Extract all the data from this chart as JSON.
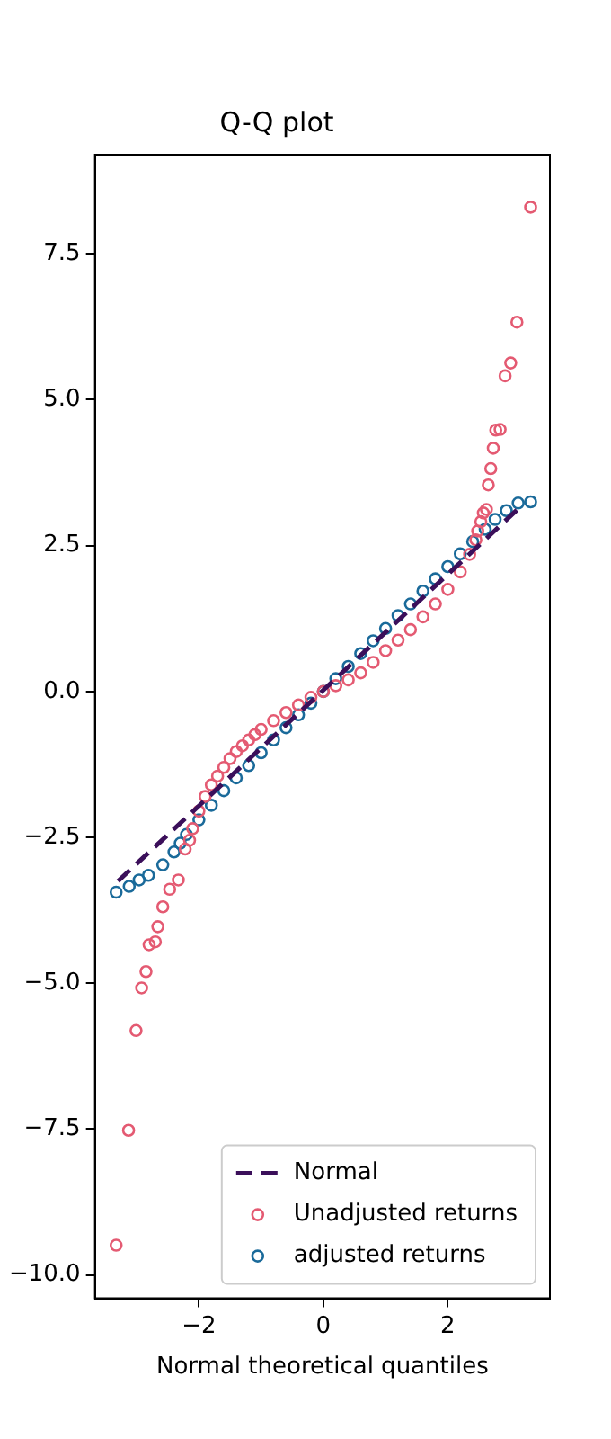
{
  "chart_data": {
    "type": "scatter",
    "title": "Q-Q plot",
    "xlabel": "Normal theoretical quantiles",
    "xlim": [
      -3.67,
      3.64
    ],
    "ylim": [
      -10.4,
      9.2
    ],
    "xticks": [
      {
        "value": -2,
        "label": "−2"
      },
      0,
      2
    ],
    "yticks": [
      {
        "value": -10,
        "label": "−10.0"
      },
      {
        "value": -7.5,
        "label": "−7.5"
      },
      {
        "value": -5,
        "label": "−5.0"
      },
      {
        "value": -2.5,
        "label": "−2.5"
      },
      {
        "value": 0,
        "label": "0.0"
      },
      {
        "value": 2.5,
        "label": "2.5"
      },
      {
        "value": 5,
        "label": "5.0"
      },
      {
        "value": 7.5,
        "label": "7.5"
      }
    ],
    "grid": false,
    "legend": "bottom right",
    "marker": "circle",
    "series": [
      {
        "name": "Normal",
        "type": "line",
        "color": "#3b0f5a",
        "line_style": "dashed",
        "marker": "none",
        "x": [
          -3.3,
          3.2
        ],
        "values": [
          -3.25,
          3.2
        ]
      },
      {
        "name": "Unadjusted returns",
        "color": "#e45a72",
        "x": [
          -3.33,
          -3.13,
          -3.01,
          -2.92,
          -2.85,
          -2.8,
          -2.7,
          -2.66,
          -2.58,
          -2.47,
          -2.33,
          -2.22,
          -2.15,
          -2.1,
          -2.0,
          -1.9,
          -1.8,
          -1.7,
          -1.6,
          -1.5,
          -1.4,
          -1.3,
          -1.2,
          -1.1,
          -1.0,
          -0.8,
          -0.6,
          -0.4,
          -0.2,
          0,
          0.2,
          0.4,
          0.6,
          0.8,
          1.0,
          1.2,
          1.4,
          1.6,
          1.8,
          2.0,
          2.2,
          2.35,
          2.45,
          2.48,
          2.53,
          2.57,
          2.62,
          2.65,
          2.69,
          2.73,
          2.77,
          2.84,
          2.92,
          3.01,
          3.11,
          3.33
        ],
        "values": [
          -9.49,
          -7.52,
          -5.81,
          -5.08,
          -4.8,
          -4.34,
          -4.29,
          -4.03,
          -3.69,
          -3.39,
          -3.23,
          -2.7,
          -2.55,
          -2.35,
          -2.05,
          -1.8,
          -1.6,
          -1.45,
          -1.3,
          -1.15,
          -1.03,
          -0.93,
          -0.83,
          -0.74,
          -0.65,
          -0.5,
          -0.36,
          -0.23,
          -0.1,
          0,
          0.1,
          0.2,
          0.32,
          0.5,
          0.7,
          0.88,
          1.06,
          1.28,
          1.5,
          1.75,
          2.05,
          2.35,
          2.6,
          2.75,
          2.91,
          3.06,
          3.12,
          3.54,
          3.82,
          4.17,
          4.48,
          4.49,
          5.41,
          5.63,
          6.33,
          8.3
        ]
      },
      {
        "name": "adjusted returns",
        "color": "#1a6a9a",
        "x": [
          -3.33,
          -3.12,
          -2.96,
          -2.81,
          -2.58,
          -2.4,
          -2.3,
          -2.2,
          -2.0,
          -1.8,
          -1.6,
          -1.4,
          -1.2,
          -1.0,
          -0.8,
          -0.6,
          -0.4,
          -0.2,
          0,
          0.2,
          0.4,
          0.6,
          0.8,
          1.0,
          1.2,
          1.4,
          1.6,
          1.8,
          2.0,
          2.2,
          2.4,
          2.6,
          2.76,
          2.94,
          3.13,
          3.33
        ],
        "values": [
          -3.44,
          -3.34,
          -3.23,
          -3.15,
          -2.97,
          -2.75,
          -2.6,
          -2.45,
          -2.2,
          -1.95,
          -1.7,
          -1.48,
          -1.27,
          -1.05,
          -0.83,
          -0.62,
          -0.4,
          -0.2,
          0,
          0.22,
          0.43,
          0.65,
          0.87,
          1.08,
          1.3,
          1.5,
          1.72,
          1.93,
          2.14,
          2.36,
          2.57,
          2.78,
          2.95,
          3.1,
          3.23,
          3.25
        ]
      }
    ]
  }
}
